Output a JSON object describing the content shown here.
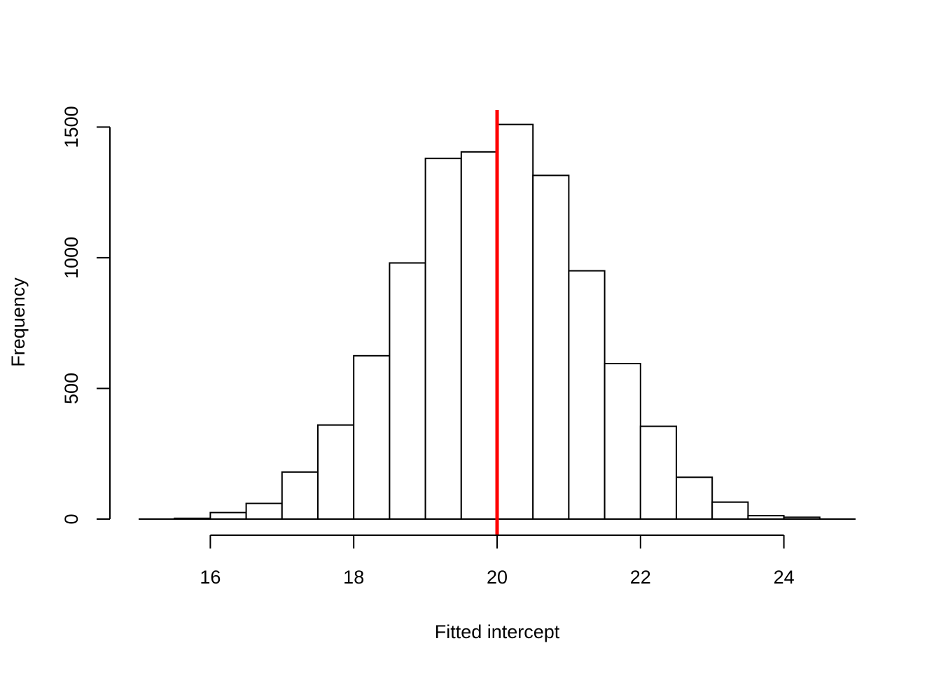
{
  "chart_data": {
    "type": "bar",
    "subtype": "histogram",
    "title": "",
    "xlabel": "Fitted intercept",
    "ylabel": "Frequency",
    "bins": [
      {
        "x0": 15.5,
        "x1": 16.0,
        "value": 3
      },
      {
        "x0": 16.0,
        "x1": 16.5,
        "value": 25
      },
      {
        "x0": 16.5,
        "x1": 17.0,
        "value": 60
      },
      {
        "x0": 17.0,
        "x1": 17.5,
        "value": 180
      },
      {
        "x0": 17.5,
        "x1": 18.0,
        "value": 360
      },
      {
        "x0": 18.0,
        "x1": 18.5,
        "value": 625
      },
      {
        "x0": 18.5,
        "x1": 19.0,
        "value": 980
      },
      {
        "x0": 19.0,
        "x1": 19.5,
        "value": 1380
      },
      {
        "x0": 19.5,
        "x1": 20.0,
        "value": 1405
      },
      {
        "x0": 20.0,
        "x1": 20.5,
        "value": 1510
      },
      {
        "x0": 20.5,
        "x1": 21.0,
        "value": 1315
      },
      {
        "x0": 21.0,
        "x1": 21.5,
        "value": 950
      },
      {
        "x0": 21.5,
        "x1": 22.0,
        "value": 595
      },
      {
        "x0": 22.0,
        "x1": 22.5,
        "value": 355
      },
      {
        "x0": 22.5,
        "x1": 23.0,
        "value": 160
      },
      {
        "x0": 23.0,
        "x1": 23.5,
        "value": 65
      },
      {
        "x0": 23.5,
        "x1": 24.0,
        "value": 13
      },
      {
        "x0": 24.0,
        "x1": 24.5,
        "value": 7
      }
    ],
    "xlim": [
      15.0,
      25.0
    ],
    "ylim": [
      0,
      1560
    ],
    "x_ticks": [
      16,
      18,
      20,
      22,
      24
    ],
    "x_tick_labels": [
      "16",
      "18",
      "20",
      "22",
      "24"
    ],
    "y_ticks": [
      0,
      500,
      1000,
      1500
    ],
    "y_tick_labels": [
      "0",
      "500",
      "1000",
      "1500"
    ],
    "reference_line": {
      "x": 20,
      "color": "#ff0000"
    },
    "bar_fill": "#ffffff",
    "bar_stroke": "#000000",
    "grid": false
  }
}
